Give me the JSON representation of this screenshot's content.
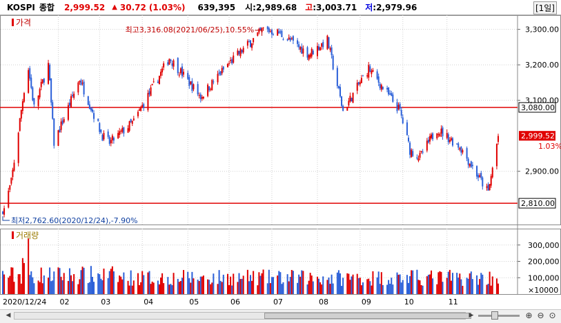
{
  "header": {
    "symbol": "KOSPI",
    "name": "종합",
    "price": "2,999.52",
    "change_arrow": "▲",
    "change": "30.72",
    "change_pct": "(1.03%)",
    "volume": "639,395",
    "open_label": "시",
    "open_value": ":2,989.68",
    "high_label": "고",
    "high_value": ":3,003.71",
    "low_label": "저",
    "low_value": ":2,979.96",
    "period": "[1일]"
  },
  "price_panel": {
    "label": "가격",
    "high_annotation": "최고3,316.08(2021/06/25),10.55%",
    "low_annotation": "최저2,762.60(2020/12/24),-7.90%",
    "lines": [
      {
        "value": 3080,
        "label": "3,080.00"
      },
      {
        "value": 2810,
        "label": "2,810.00"
      }
    ],
    "last_price": "2,999.52",
    "last_pct": "1.03%"
  },
  "volume_panel": {
    "label": "거래량",
    "unit_label": "×10000"
  },
  "colors": {
    "up": "#e00000",
    "down": "#2a5fd8",
    "line": "#e00000",
    "grid": "#cfcfcf"
  },
  "bottom_bar": {
    "icons": [
      "scroll-left-arrow",
      "scroll-right-arrow",
      "zoom-in-icon",
      "zoom-out-icon",
      "zoom-reset-icon",
      "zoom-fit-icon"
    ]
  },
  "chart_data": [
    {
      "type": "candlestick",
      "title": "KOSPI 종합 가격",
      "ylim": [
        2750,
        3340
      ],
      "yticks": [
        {
          "value": 3300,
          "label": "3,300.00"
        },
        {
          "value": 3200,
          "label": "3,200.00"
        },
        {
          "value": 3100,
          "label": "3,100.00"
        },
        {
          "value": 2900,
          "label": "2,900.00"
        }
      ],
      "xticks": [
        "2020/12/24",
        "02",
        "03",
        "04",
        "05",
        "06",
        "07",
        "08",
        "09",
        "10",
        "11"
      ],
      "anchors": [
        {
          "date": "2020/12/24",
          "close": 2780
        },
        {
          "date": "2020/12/30",
          "close": 2870
        },
        {
          "date": "2021/01/08",
          "close": 3130
        },
        {
          "date": "2021/01/11",
          "close": 3190
        },
        {
          "date": "2021/01/15",
          "close": 3080
        },
        {
          "date": "2021/01/25",
          "close": 3200
        },
        {
          "date": "2021/01/29",
          "close": 2980
        },
        {
          "date": "2021/02/16",
          "close": 3160
        },
        {
          "date": "2021/03/04",
          "close": 3000
        },
        {
          "date": "2021/03/09",
          "close": 2980
        },
        {
          "date": "2021/03/26",
          "close": 3040
        },
        {
          "date": "2021/04/20",
          "close": 3220
        },
        {
          "date": "2021/05/12",
          "close": 3110
        },
        {
          "date": "2021/05/31",
          "close": 3200
        },
        {
          "date": "2021/06/25",
          "close": 3300
        },
        {
          "date": "2021/07/06",
          "close": 3290
        },
        {
          "date": "2021/07/27",
          "close": 3230
        },
        {
          "date": "2021/08/09",
          "close": 3270
        },
        {
          "date": "2021/08/20",
          "close": 3070
        },
        {
          "date": "2021/09/07",
          "close": 3190
        },
        {
          "date": "2021/09/29",
          "close": 3070
        },
        {
          "date": "2021/10/06",
          "close": 2960
        },
        {
          "date": "2021/10/13",
          "close": 2940
        },
        {
          "date": "2021/10/25",
          "close": 3020
        },
        {
          "date": "2021/11/10",
          "close": 2970
        },
        {
          "date": "2021/11/30",
          "close": 2840
        },
        {
          "date": "2021/12/07",
          "close": 2999.52
        }
      ]
    },
    {
      "type": "bar",
      "title": "거래량",
      "ylim": [
        0,
        400000
      ],
      "yticks": [
        {
          "value": 300000,
          "label": "300,000"
        },
        {
          "value": 200000,
          "label": "200,000"
        },
        {
          "value": 100000,
          "label": "100,000"
        }
      ],
      "spikes": [
        {
          "date": "2021/01/11",
          "value": 340000
        },
        {
          "date": "2021/01/08",
          "value": 190000
        },
        {
          "date": "2021/01/07",
          "value": 220000
        }
      ],
      "typical_range": [
        50000,
        150000
      ]
    }
  ]
}
